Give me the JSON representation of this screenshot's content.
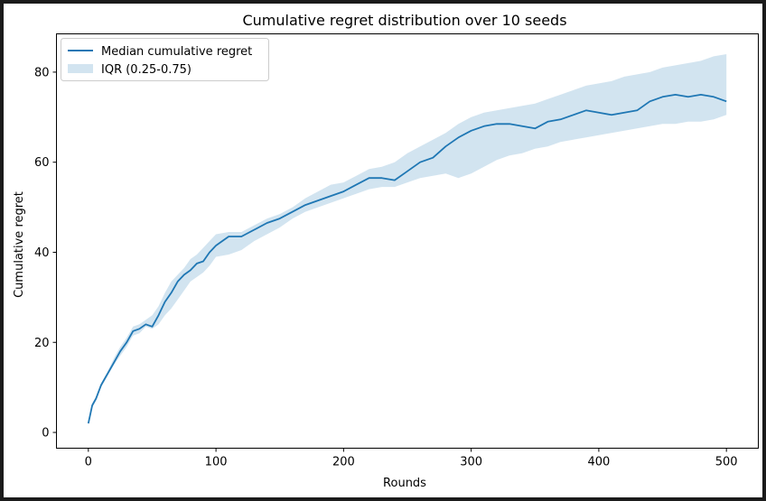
{
  "chart_data": {
    "type": "line",
    "title": "Cumulative regret distribution over 10 seeds",
    "xlabel": "Rounds",
    "ylabel": "Cumulative regret",
    "xlim": [
      -25,
      525
    ],
    "ylim": [
      -3.5,
      88.5
    ],
    "xticks": [
      0,
      100,
      200,
      300,
      400,
      500
    ],
    "yticks": [
      0,
      20,
      40,
      60,
      80
    ],
    "legend_position": "top-left",
    "grid": false,
    "series": [
      {
        "name": "Median cumulative regret",
        "kind": "line",
        "color": "#1f77b4",
        "x": [
          0,
          3,
          6,
          10,
          15,
          20,
          25,
          30,
          35,
          40,
          45,
          50,
          55,
          60,
          65,
          70,
          75,
          80,
          85,
          90,
          95,
          100,
          110,
          120,
          130,
          140,
          150,
          160,
          170,
          180,
          190,
          200,
          210,
          220,
          230,
          240,
          250,
          260,
          270,
          280,
          290,
          300,
          310,
          320,
          330,
          340,
          350,
          360,
          370,
          380,
          390,
          400,
          410,
          420,
          430,
          440,
          450,
          460,
          470,
          480,
          490,
          500
        ],
        "y": [
          2,
          6,
          7.5,
          10.5,
          13,
          15.5,
          18,
          20,
          22.5,
          23,
          24,
          23.5,
          26,
          29,
          31,
          33.5,
          35,
          36,
          37.5,
          38,
          40,
          41.5,
          43.5,
          43.5,
          45,
          46.5,
          47.5,
          49,
          50.5,
          51.5,
          52.5,
          53.5,
          55,
          56.5,
          56.5,
          56,
          58,
          60,
          61,
          63.5,
          65.5,
          67,
          68,
          68.5,
          68.5,
          68,
          67.5,
          69,
          69.5,
          70.5,
          71.5,
          71,
          70.5,
          71,
          71.5,
          73.5,
          74.5,
          75,
          74.5,
          75,
          74.5,
          73.5
        ]
      },
      {
        "name": "IQR (0.25-0.75)",
        "kind": "band",
        "color": "#1f77b4",
        "opacity": 0.2,
        "x": [
          0,
          3,
          6,
          10,
          15,
          20,
          25,
          30,
          35,
          40,
          45,
          50,
          55,
          60,
          65,
          70,
          75,
          80,
          85,
          90,
          95,
          100,
          110,
          120,
          130,
          140,
          150,
          160,
          170,
          180,
          190,
          200,
          210,
          220,
          230,
          240,
          250,
          260,
          270,
          280,
          290,
          300,
          310,
          320,
          330,
          340,
          350,
          360,
          370,
          380,
          390,
          400,
          410,
          420,
          430,
          440,
          450,
          460,
          470,
          480,
          490,
          500
        ],
        "lower": [
          2,
          5.5,
          7,
          10,
          12.5,
          15,
          17,
          19,
          21.5,
          22,
          23.5,
          23,
          24,
          26,
          27.5,
          29.5,
          31.5,
          33.5,
          34.5,
          35.5,
          37,
          39,
          39.5,
          40.5,
          42.5,
          44,
          45.5,
          47.5,
          49,
          50,
          51,
          52,
          53,
          54,
          54.5,
          54.5,
          55.5,
          56.5,
          57,
          57.5,
          56.5,
          57.5,
          59,
          60.5,
          61.5,
          62,
          63,
          63.5,
          64.5,
          65,
          65.5,
          66,
          66.5,
          67,
          67.5,
          68,
          68.5,
          68.5,
          69,
          69,
          69.5,
          70.5
        ],
        "upper": [
          2,
          6.5,
          8,
          11,
          13.5,
          16.5,
          19,
          21,
          23.5,
          24,
          25,
          26,
          28,
          31,
          33.5,
          35,
          36.5,
          38.5,
          39.5,
          41,
          42.5,
          44,
          44.5,
          44.5,
          46,
          47.5,
          48.5,
          50,
          52,
          53.5,
          55,
          55.5,
          57,
          58.5,
          59,
          60,
          62,
          63.5,
          65,
          66.5,
          68.5,
          70,
          71,
          71.5,
          72,
          72.5,
          73,
          74,
          75,
          76,
          77,
          77.5,
          78,
          79,
          79.5,
          80,
          81,
          81.5,
          82,
          82.5,
          83.5,
          84
        ]
      }
    ]
  }
}
